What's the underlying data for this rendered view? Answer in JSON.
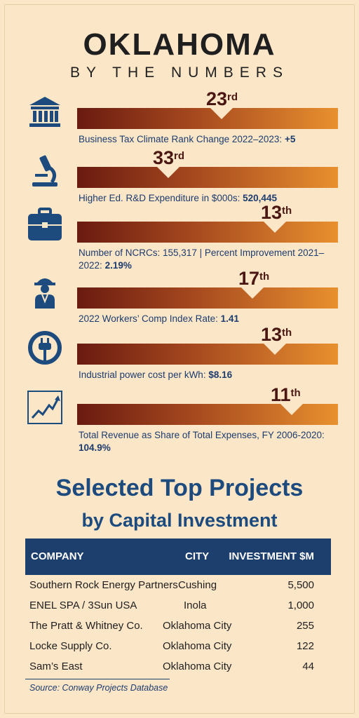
{
  "header": {
    "title": "OKLAHOMA",
    "subtitle": "BY THE NUMBERS"
  },
  "rankings": [
    {
      "icon": "bank-building-icon",
      "rank_num": "23",
      "rank_suffix": "rd",
      "label": "Business Tax Climate Rank Change 2022–2023:",
      "value": "+5"
    },
    {
      "icon": "microscope-icon",
      "rank_num": "33",
      "rank_suffix": "rd",
      "label": "Higher Ed. R&D Expenditure in $000s:",
      "value": "520,445"
    },
    {
      "icon": "briefcase-icon",
      "rank_num": "13",
      "rank_suffix": "th",
      "label": "Number of NCRCs: 155,317 | Percent Improvement 2021–2022:",
      "value": "2.19%"
    },
    {
      "icon": "construction-worker-icon",
      "rank_num": "17",
      "rank_suffix": "th",
      "label": "2022 Workers’ Comp Index Rate:",
      "value": "1.41"
    },
    {
      "icon": "power-plug-icon",
      "rank_num": "13",
      "rank_suffix": "th",
      "label": "Industrial power cost per kWh:",
      "value": "$8.16"
    },
    {
      "icon": "line-chart-icon",
      "rank_num": "11",
      "rank_suffix": "th",
      "label": "Total Revenue as Share of Total Expenses, FY 2006-2020:",
      "value": "104.9%"
    }
  ],
  "projects": {
    "title": "Selected Top Projects",
    "subtitle": "by Capital Investment",
    "headers": [
      "COMPANY",
      "CITY",
      "INVESTMENT $M"
    ],
    "rows": [
      [
        "Southern Rock Energy Partners",
        "Cushing",
        "5,500"
      ],
      [
        "ENEL SPA / 3Sun USA",
        "Inola",
        "1,000"
      ],
      [
        "The Pratt & Whitney Co.",
        "Oklahoma City",
        "255"
      ],
      [
        "Locke Supply Co.",
        "Oklahoma City",
        "122"
      ],
      [
        "Sam’s East",
        "Oklahoma City",
        "44"
      ]
    ],
    "source": "Source: Conway Projects Database"
  },
  "colors": {
    "navy": "#1d3f6e",
    "bar_dark": "#6a1a10",
    "bar_light": "#e8902f",
    "background": "#fbe6c8"
  }
}
